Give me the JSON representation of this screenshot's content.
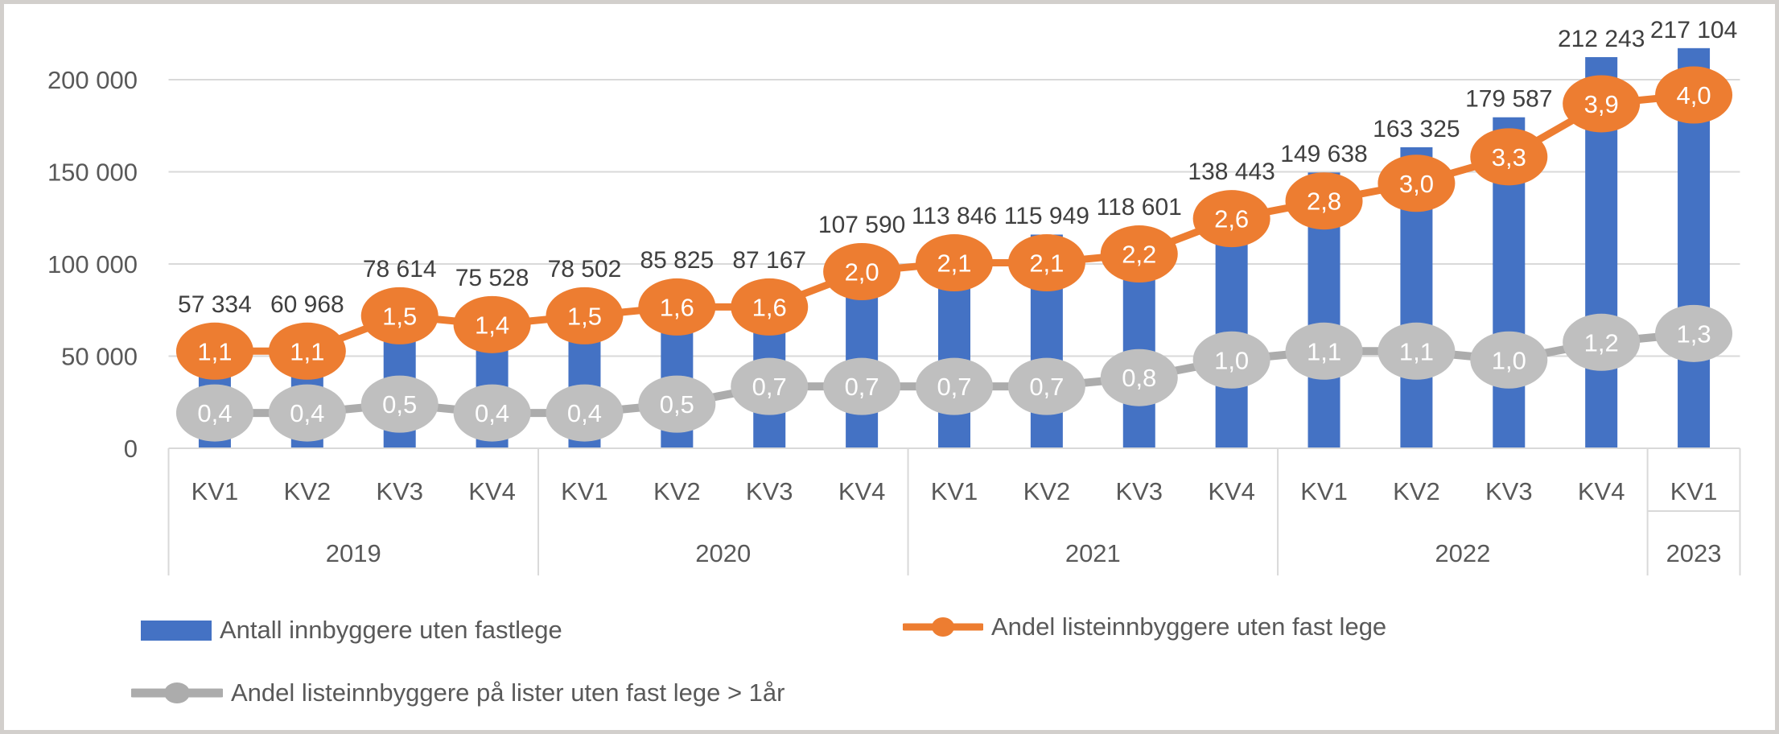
{
  "chart_data": {
    "type": "bar",
    "subtype": "bar+line combo, clustered column with two secondary-axis line series",
    "quarters": [
      "KV1",
      "KV2",
      "KV3",
      "KV4",
      "KV1",
      "KV2",
      "KV3",
      "KV4",
      "KV1",
      "KV2",
      "KV3",
      "KV4",
      "KV1",
      "KV2",
      "KV3",
      "KV4",
      "KV1"
    ],
    "year_groups": [
      {
        "label": "2019",
        "count": 4
      },
      {
        "label": "2020",
        "count": 4
      },
      {
        "label": "2021",
        "count": 4
      },
      {
        "label": "2022",
        "count": 4
      },
      {
        "label": "2023",
        "count": 1
      }
    ],
    "y_axis": {
      "ticks": [
        {
          "label": "0",
          "value": 0
        },
        {
          "label": "50 000",
          "value": 50000
        },
        {
          "label": "100 000",
          "value": 100000
        },
        {
          "label": "150 000",
          "value": 150000
        },
        {
          "label": "200 000",
          "value": 200000
        }
      ],
      "grid": true
    },
    "series": [
      {
        "name": "Antall innbyggere uten fastlege",
        "type": "bar",
        "color": "#4472C4",
        "values": [
          57334,
          60968,
          78614,
          75528,
          78502,
          85825,
          87167,
          107590,
          113846,
          115949,
          118601,
          138443,
          149638,
          163325,
          179587,
          212243,
          217104
        ],
        "labels": [
          "57 334",
          "60 968",
          "78 614",
          "75 528",
          "78 502",
          "85 825",
          "87 167",
          "107 590",
          "113 846",
          "115 949",
          "118 601",
          "138 443",
          "149 638",
          "163 325",
          "179 587",
          "212 243",
          "217 104"
        ]
      },
      {
        "name": "Andel listeinnbyggere uten fast lege",
        "type": "line",
        "color": "#ED7D31",
        "line_color": "#ED7D31",
        "values": [
          1.1,
          1.1,
          1.5,
          1.4,
          1.5,
          1.6,
          1.6,
          2.0,
          2.1,
          2.1,
          2.2,
          2.6,
          2.8,
          3.0,
          3.3,
          3.9,
          4.0
        ],
        "labels": [
          "1,1",
          "1,1",
          "1,5",
          "1,4",
          "1,5",
          "1,6",
          "1,6",
          "2,0",
          "2,1",
          "2,1",
          "2,2",
          "2,6",
          "2,8",
          "3,0",
          "3,3",
          "3,9",
          "4,0"
        ]
      },
      {
        "name": "Andel listeinnbyggere på lister uten fast lege > 1år",
        "type": "line",
        "color": "#BFBFBF",
        "line_color": "#ACACAC",
        "values": [
          0.4,
          0.4,
          0.5,
          0.4,
          0.4,
          0.5,
          0.7,
          0.7,
          0.7,
          0.7,
          0.8,
          1.0,
          1.1,
          1.1,
          1.0,
          1.2,
          1.3
        ],
        "labels": [
          "0,4",
          "0,4",
          "0,5",
          "0,4",
          "0,4",
          "0,5",
          "0,7",
          "0,7",
          "0,7",
          "0,7",
          "0,8",
          "1,0",
          "1,1",
          "1,1",
          "1,0",
          "1,2",
          "1,3"
        ]
      }
    ],
    "colors": {
      "gridline": "#D9D9D9",
      "axis_text": "#595959",
      "data_label_text": "#3F3F3F"
    }
  }
}
